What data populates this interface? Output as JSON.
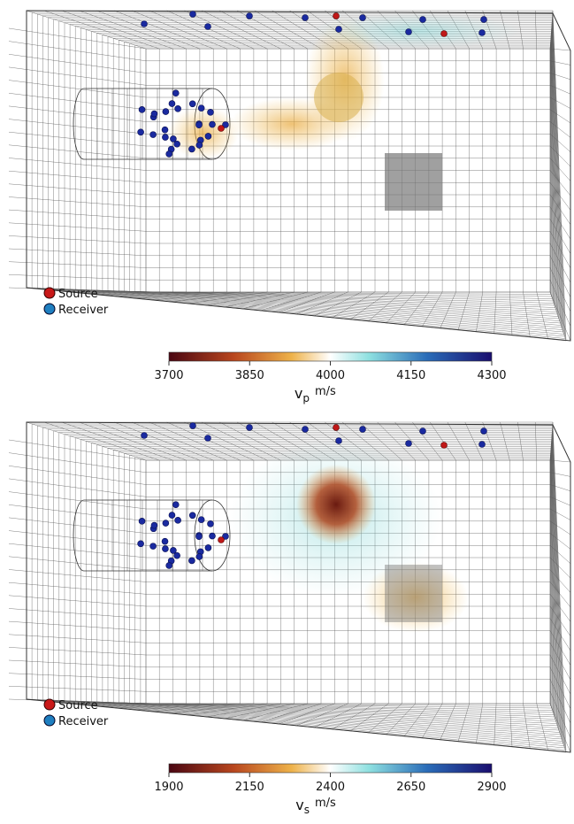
{
  "panels": [
    {
      "legend": {
        "source": "Source",
        "receiver": "Receiver"
      },
      "colorbar": {
        "symbol": "v",
        "subscript": "p",
        "unit": "m/s",
        "lim": [
          3700,
          4300
        ],
        "ticks": [
          3700,
          3850,
          4000,
          4150,
          4300
        ]
      }
    },
    {
      "legend": {
        "source": "Source",
        "receiver": "Receiver"
      },
      "colorbar": {
        "symbol": "v",
        "subscript": "s",
        "unit": "m/s",
        "lim": [
          1900,
          2900
        ],
        "ticks": [
          1900,
          2150,
          2400,
          2650,
          2900
        ]
      }
    }
  ]
}
